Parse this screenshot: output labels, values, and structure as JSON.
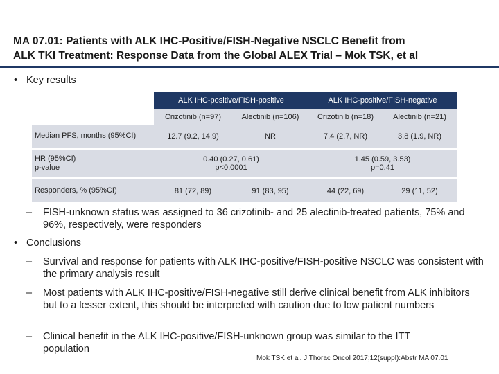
{
  "title": "MA 07.01: Patients with ALK IHC-Positive/FISH-Negative NSCLC Benefit from\nALK TKI Treatment: Response Data from the Global ALEX Trial – Mok TSK, et al",
  "colors": {
    "brand_navy": "#1f3864",
    "band_gray": "#d9dce4"
  },
  "bullet_marker": "•",
  "key_results": "Key results",
  "table": {
    "group_headers": [
      "ALK IHC-positive/FISH-positive",
      "ALK IHC-positive/FISH-negative"
    ],
    "arm_headers": [
      "Crizotinib (n=97)",
      "Alectinib (n=106)",
      "Crizotinib (n=18)",
      "Alectinib (n=21)"
    ],
    "pfs": {
      "label": "Median PFS, months (95%CI)",
      "pos_criz": "12.7 (9.2, 14.9)",
      "pos_alec": "NR",
      "neg_criz": "7.4 (2.7, NR)",
      "neg_alec": "3.8 (1.9, NR)"
    },
    "hr": {
      "label_line1": "HR (95%CI)",
      "label_line2": "p-value",
      "pos_hr": "0.40 (0.27, 0.61)",
      "pos_p": "p<0.0001",
      "neg_hr": "1.45 (0.59, 3.53)",
      "neg_p": "p=0.41"
    },
    "responders": {
      "label": "Responders, % (95%CI)",
      "pos_criz": "81 (72, 89)",
      "pos_alec": "91 (83, 95)",
      "neg_criz": "44 (22, 69)",
      "neg_alec": "29 (11, 52)"
    }
  },
  "dash_marker": "–",
  "key_results_note": "FISH-unknown status was assigned to 36 crizotinib- and 25 alectinib-treated patients, 75% and 96%, respectively, were responders",
  "conclusions": {
    "heading": "Conclusions",
    "items": [
      "Survival and response for patients with ALK IHC-positive/FISH-positive NSCLC was consistent with the primary analysis result",
      "Most patients with ALK IHC-positive/FISH-negative still derive clinical benefit from ALK inhibitors but to a lesser extent, this should be interpreted with caution due to low patient numbers",
      "Clinical benefit in the ALK IHC-positive/FISH-unknown group was similar to the ITT population"
    ]
  },
  "citation": "Mok TSK et al. J Thorac Oncol 2017;12(suppl):Abstr MA 07.01"
}
